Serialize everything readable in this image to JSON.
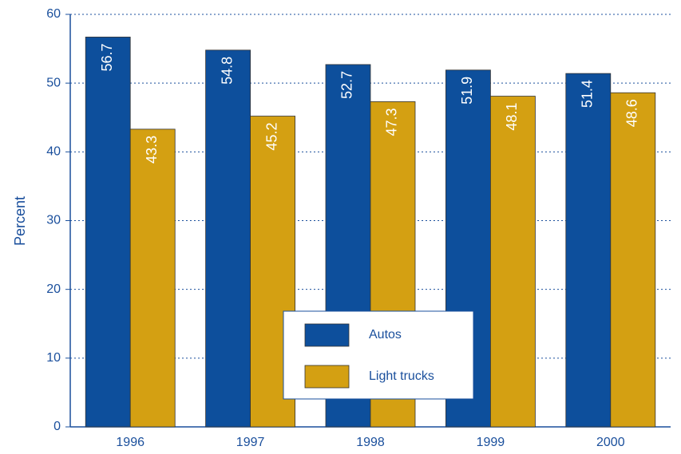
{
  "chart_data": {
    "type": "bar",
    "y_label": "Percent",
    "categories": [
      "1996",
      "1997",
      "1998",
      "1999",
      "2000"
    ],
    "series": [
      {
        "name": "Autos",
        "color": "#0d4f9c",
        "values": [
          56.7,
          54.8,
          52.7,
          51.9,
          51.4
        ]
      },
      {
        "name": "Light trucks",
        "color": "#d4a012",
        "values": [
          43.3,
          45.2,
          47.3,
          48.1,
          48.6
        ]
      }
    ],
    "ylim": [
      0,
      60
    ],
    "yticks": [
      0,
      10,
      20,
      30,
      40,
      50,
      60
    ],
    "grid": true,
    "legend": "bottom-center"
  }
}
